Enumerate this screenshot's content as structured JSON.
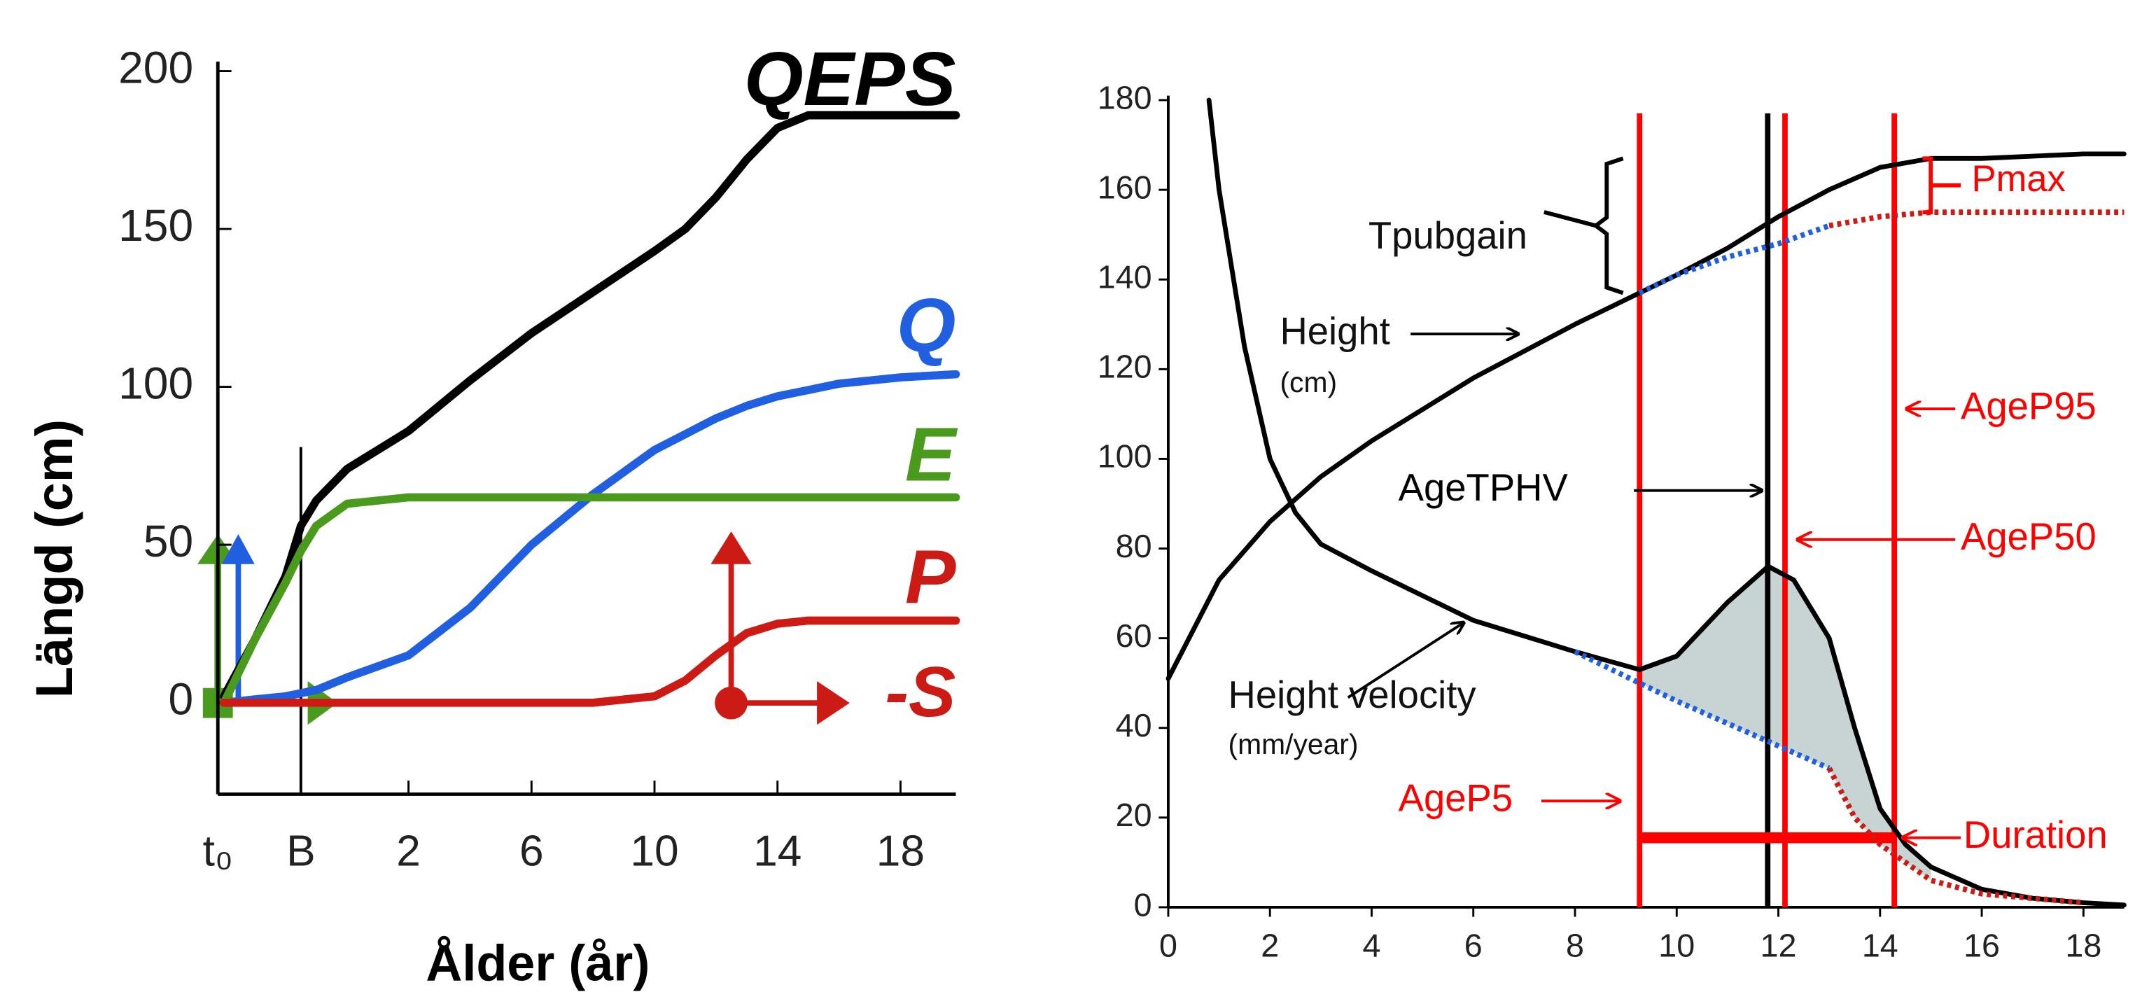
{
  "chart_data": [
    {
      "type": "line",
      "ylabel": "Längd (cm)",
      "xlabel": "Ålder (år)",
      "xlim": [
        -4.2,
        19.8
      ],
      "ylim": [
        -29,
        203
      ],
      "xticks": [
        {
          "value": -4.2,
          "label": "t₀"
        },
        {
          "value": -1.5,
          "label": "B"
        },
        2,
        6,
        10,
        14,
        18
      ],
      "yticks": [
        0,
        50,
        100,
        150,
        200
      ],
      "x": [
        -4,
        -3,
        -2,
        -1.5,
        -1,
        0,
        2,
        4,
        6,
        8,
        10,
        11,
        12,
        13,
        14,
        15,
        16,
        18,
        19.8
      ],
      "series": [
        {
          "name": "QEPS",
          "color": "#000000",
          "values": [
            2,
            20,
            40,
            56,
            64,
            74,
            86,
            102,
            117,
            130,
            143,
            150,
            160,
            172,
            182,
            186,
            186,
            186,
            186
          ]
        },
        {
          "name": "Q",
          "color": "#1f5fe0",
          "values": [
            0,
            1,
            2,
            3,
            4,
            8,
            15,
            30,
            50,
            66,
            80,
            85,
            90,
            94,
            97,
            99,
            101,
            103,
            104
          ]
        },
        {
          "name": "E",
          "color": "#4a9a1e",
          "values": [
            0,
            20,
            38,
            48,
            56,
            63,
            65,
            65,
            65,
            65,
            65,
            65,
            65,
            65,
            65,
            65,
            65,
            65,
            65
          ]
        },
        {
          "name": "P",
          "color": "#cc1a14",
          "values": [
            0,
            0,
            0,
            0,
            0,
            0,
            0,
            0,
            0,
            0,
            2,
            7,
            15,
            22,
            25,
            26,
            26,
            26,
            26
          ]
        }
      ],
      "annotations": [
        "-S"
      ]
    },
    {
      "type": "line",
      "xlim": [
        0,
        18.8
      ],
      "ylim": [
        0,
        181
      ],
      "xticks": [
        0,
        2,
        4,
        6,
        8,
        10,
        12,
        14,
        16,
        18
      ],
      "yticks": [
        0,
        20,
        40,
        60,
        80,
        100,
        120,
        140,
        160,
        180
      ],
      "series": [
        {
          "name": "Height",
          "color": "#000000",
          "style": "solid",
          "x": [
            0,
            1,
            2,
            3,
            4,
            6,
            8,
            9.27,
            10,
            11,
            12,
            13,
            14,
            15,
            16,
            18,
            18.8
          ],
          "values": [
            51,
            73,
            86,
            96,
            104,
            118,
            130,
            137,
            141,
            147,
            154,
            160,
            165,
            167,
            167,
            168,
            168
          ]
        },
        {
          "name": "Height velocity",
          "color": "#000000",
          "style": "solid",
          "x": [
            0.8,
            1,
            1.5,
            2,
            2.5,
            3,
            4,
            6,
            8,
            9.27,
            10,
            11,
            11.8,
            12.3,
            13,
            13.5,
            14,
            14.5,
            15,
            16,
            17,
            18,
            18.8
          ],
          "values": [
            180,
            160,
            125,
            100,
            88,
            81,
            75,
            64,
            57,
            53,
            56,
            68,
            76,
            73,
            60,
            40,
            22,
            14,
            9,
            4,
            2,
            1,
            0.5
          ]
        },
        {
          "color": "#1f5fe0",
          "style": "dotted",
          "x": [
            9.27,
            10,
            11,
            12,
            13
          ],
          "values": [
            137,
            141,
            145,
            148,
            152
          ]
        },
        {
          "color": "#cc1a14",
          "style": "dotted",
          "x": [
            13,
            14,
            15,
            16,
            18,
            18.8
          ],
          "values": [
            152,
            154,
            155,
            155,
            155,
            155
          ]
        },
        {
          "color": "#1f5fe0",
          "style": "dotted",
          "x": [
            8,
            9.27,
            10,
            11,
            12,
            13
          ],
          "values": [
            57,
            50,
            46,
            41,
            36,
            31
          ]
        },
        {
          "color": "#cc1a14",
          "style": "dotted",
          "x": [
            13,
            13.5,
            14,
            15,
            16,
            18
          ],
          "values": [
            31,
            20,
            14,
            6,
            3,
            1
          ]
        }
      ],
      "annotations": [
        "(cm)",
        "(mm/year)"
      ],
      "vlines": [
        {
          "label": "AgeP5",
          "x": 9.27,
          "color": "#ff0000"
        },
        {
          "label": "AgeTPHV",
          "x": 11.79,
          "color": "#000000"
        },
        {
          "label": "AgeP50",
          "x": 12.13,
          "color": "#ff0000"
        },
        {
          "label": "AgeP95",
          "x": 14.28,
          "color": "#ff0000"
        }
      ],
      "span": {
        "label": "Duration",
        "y": 15.5,
        "x": [
          9.27,
          14.28
        ],
        "color": "#ff0000"
      },
      "brackets": [
        {
          "label": "Pmax",
          "y": [
            155,
            167
          ],
          "color": "#ff0000"
        },
        {
          "label": "Tpubgain",
          "y": [
            137,
            167
          ],
          "color": "#000000"
        }
      ]
    }
  ]
}
